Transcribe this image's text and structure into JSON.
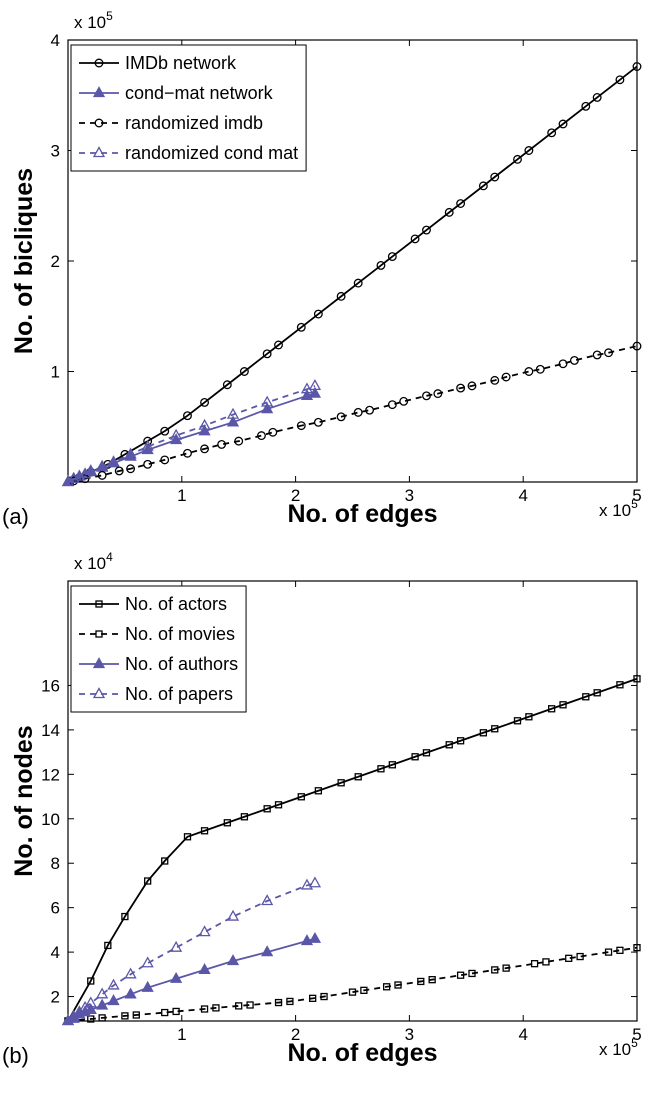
{
  "chart_data": [
    {
      "type": "line",
      "panel_label": "(a)",
      "xlabel": "No. of edges",
      "ylabel": "No. of bicliques",
      "x_multiplier": {
        "base": "x 10",
        "exponent": "5"
      },
      "y_multiplier": {
        "base": "x 10",
        "exponent": "5"
      },
      "xlim": [
        0,
        5
      ],
      "ylim": [
        0,
        4
      ],
      "xticks": [
        1,
        2,
        3,
        4,
        5
      ],
      "yticks": [
        1,
        2,
        3,
        4
      ],
      "legend": "upper left",
      "series": [
        {
          "name": "IMDb network",
          "color": "#000000",
          "marker": "circle",
          "linestyle": "solid",
          "filled": false,
          "x": [
            0.02,
            0.1,
            0.2,
            0.35,
            0.5,
            0.7,
            0.85,
            1.05,
            1.2,
            1.4,
            1.55,
            1.75,
            1.85,
            2.05,
            2.2,
            2.4,
            2.55,
            2.75,
            2.85,
            3.05,
            3.15,
            3.35,
            3.45,
            3.65,
            3.75,
            3.95,
            4.05,
            4.25,
            4.35,
            4.55,
            4.65,
            4.85,
            5.0
          ],
          "values": [
            0.01,
            0.04,
            0.09,
            0.16,
            0.25,
            0.37,
            0.46,
            0.6,
            0.72,
            0.88,
            1.0,
            1.16,
            1.24,
            1.4,
            1.52,
            1.68,
            1.8,
            1.96,
            2.04,
            2.2,
            2.28,
            2.44,
            2.52,
            2.68,
            2.76,
            2.92,
            3.0,
            3.16,
            3.24,
            3.4,
            3.48,
            3.64,
            3.76
          ]
        },
        {
          "name": "cond−mat network",
          "color": "#5b57a8",
          "marker": "triangle",
          "linestyle": "solid",
          "filled": true,
          "x": [
            0,
            0.05,
            0.1,
            0.15,
            0.2,
            0.3,
            0.4,
            0.55,
            0.7,
            0.95,
            1.2,
            1.45,
            1.75,
            2.1,
            2.17
          ],
          "values": [
            0,
            0.03,
            0.05,
            0.07,
            0.09,
            0.13,
            0.17,
            0.23,
            0.29,
            0.38,
            0.46,
            0.54,
            0.66,
            0.78,
            0.8
          ]
        },
        {
          "name": "randomized imdb",
          "color": "#000000",
          "marker": "circle",
          "linestyle": "dashed",
          "filled": false,
          "x": [
            0.05,
            0.15,
            0.3,
            0.45,
            0.55,
            0.7,
            0.85,
            1.05,
            1.2,
            1.35,
            1.5,
            1.7,
            1.8,
            2.05,
            2.2,
            2.4,
            2.55,
            2.65,
            2.85,
            2.95,
            3.15,
            3.25,
            3.45,
            3.55,
            3.75,
            3.85,
            4.05,
            4.15,
            4.35,
            4.45,
            4.65,
            4.75,
            5.0
          ],
          "values": [
            0.01,
            0.03,
            0.06,
            0.1,
            0.12,
            0.16,
            0.2,
            0.26,
            0.3,
            0.34,
            0.37,
            0.42,
            0.45,
            0.51,
            0.54,
            0.59,
            0.63,
            0.65,
            0.7,
            0.73,
            0.78,
            0.8,
            0.85,
            0.87,
            0.92,
            0.95,
            1.0,
            1.02,
            1.07,
            1.1,
            1.15,
            1.17,
            1.23
          ]
        },
        {
          "name": "randomized cond mat",
          "color": "#5b57a8",
          "marker": "triangle",
          "linestyle": "dashed",
          "filled": false,
          "x": [
            0,
            0.05,
            0.1,
            0.15,
            0.2,
            0.3,
            0.4,
            0.55,
            0.7,
            0.95,
            1.2,
            1.45,
            1.75,
            2.1,
            2.17
          ],
          "values": [
            0,
            0.03,
            0.05,
            0.07,
            0.1,
            0.14,
            0.18,
            0.25,
            0.32,
            0.42,
            0.51,
            0.61,
            0.72,
            0.84,
            0.87
          ]
        }
      ]
    },
    {
      "type": "line",
      "panel_label": "(b)",
      "xlabel": "No. of edges",
      "ylabel": "No. of nodes",
      "x_multiplier": {
        "base": "x 10",
        "exponent": "5"
      },
      "y_multiplier": {
        "base": "x 10",
        "exponent": "4"
      },
      "xlim": [
        0,
        5
      ],
      "ylim": [
        0.9,
        20.7
      ],
      "xticks": [
        1,
        2,
        3,
        4,
        5
      ],
      "yticks": [
        2,
        4,
        6,
        8,
        10,
        12,
        14,
        16
      ],
      "legend": "upper left",
      "series": [
        {
          "name": "No. of actors",
          "color": "#000000",
          "marker": "square",
          "linestyle": "solid",
          "filled": false,
          "x": [
            0,
            0.2,
            0.35,
            0.5,
            0.7,
            0.85,
            1.05,
            1.2,
            1.4,
            1.55,
            1.75,
            1.85,
            2.05,
            2.2,
            2.4,
            2.55,
            2.75,
            2.85,
            3.05,
            3.15,
            3.35,
            3.45,
            3.65,
            3.75,
            3.95,
            4.05,
            4.25,
            4.35,
            4.55,
            4.65,
            4.85,
            5.0
          ],
          "values": [
            0.9,
            2.7,
            4.3,
            5.6,
            7.2,
            8.1,
            9.19,
            9.46,
            9.82,
            10.09,
            10.45,
            10.63,
            10.99,
            11.26,
            11.62,
            11.89,
            12.25,
            12.43,
            12.79,
            12.97,
            13.33,
            13.51,
            13.87,
            14.05,
            14.41,
            14.59,
            14.95,
            15.13,
            15.49,
            15.67,
            16.03,
            16.3
          ]
        },
        {
          "name": "No. of movies",
          "color": "#000000",
          "marker": "square",
          "linestyle": "dashed",
          "filled": false,
          "x": [
            0,
            0.2,
            0.3,
            0.5,
            0.6,
            0.85,
            0.95,
            1.2,
            1.3,
            1.5,
            1.6,
            1.85,
            1.95,
            2.15,
            2.25,
            2.5,
            2.6,
            2.8,
            2.9,
            3.1,
            3.2,
            3.45,
            3.55,
            3.75,
            3.85,
            4.1,
            4.2,
            4.4,
            4.5,
            4.75,
            4.85,
            5.0
          ],
          "values": [
            0.9,
            0.99,
            1.04,
            1.13,
            1.17,
            1.28,
            1.33,
            1.44,
            1.49,
            1.58,
            1.62,
            1.73,
            1.78,
            1.92,
            2.0,
            2.2,
            2.28,
            2.44,
            2.52,
            2.68,
            2.76,
            2.96,
            3.04,
            3.2,
            3.28,
            3.48,
            3.56,
            3.72,
            3.8,
            4.0,
            4.08,
            4.2
          ]
        },
        {
          "name": "No. of authors",
          "color": "#5b57a8",
          "marker": "triangle",
          "linestyle": "solid",
          "filled": true,
          "x": [
            0,
            0.05,
            0.1,
            0.15,
            0.2,
            0.3,
            0.4,
            0.55,
            0.7,
            0.95,
            1.2,
            1.45,
            1.75,
            2.1,
            2.17
          ],
          "values": [
            0.9,
            1.0,
            1.2,
            1.3,
            1.4,
            1.6,
            1.8,
            2.1,
            2.4,
            2.8,
            3.2,
            3.6,
            4.0,
            4.5,
            4.6
          ]
        },
        {
          "name": "No. of papers",
          "color": "#5b57a8",
          "marker": "triangle",
          "linestyle": "dashed",
          "filled": false,
          "x": [
            0,
            0.05,
            0.1,
            0.15,
            0.2,
            0.3,
            0.4,
            0.55,
            0.7,
            0.95,
            1.2,
            1.45,
            1.75,
            2.1,
            2.17
          ],
          "values": [
            0.9,
            1.1,
            1.3,
            1.5,
            1.7,
            2.1,
            2.5,
            3.0,
            3.5,
            4.2,
            4.9,
            5.6,
            6.3,
            7.0,
            7.1
          ]
        }
      ]
    }
  ]
}
